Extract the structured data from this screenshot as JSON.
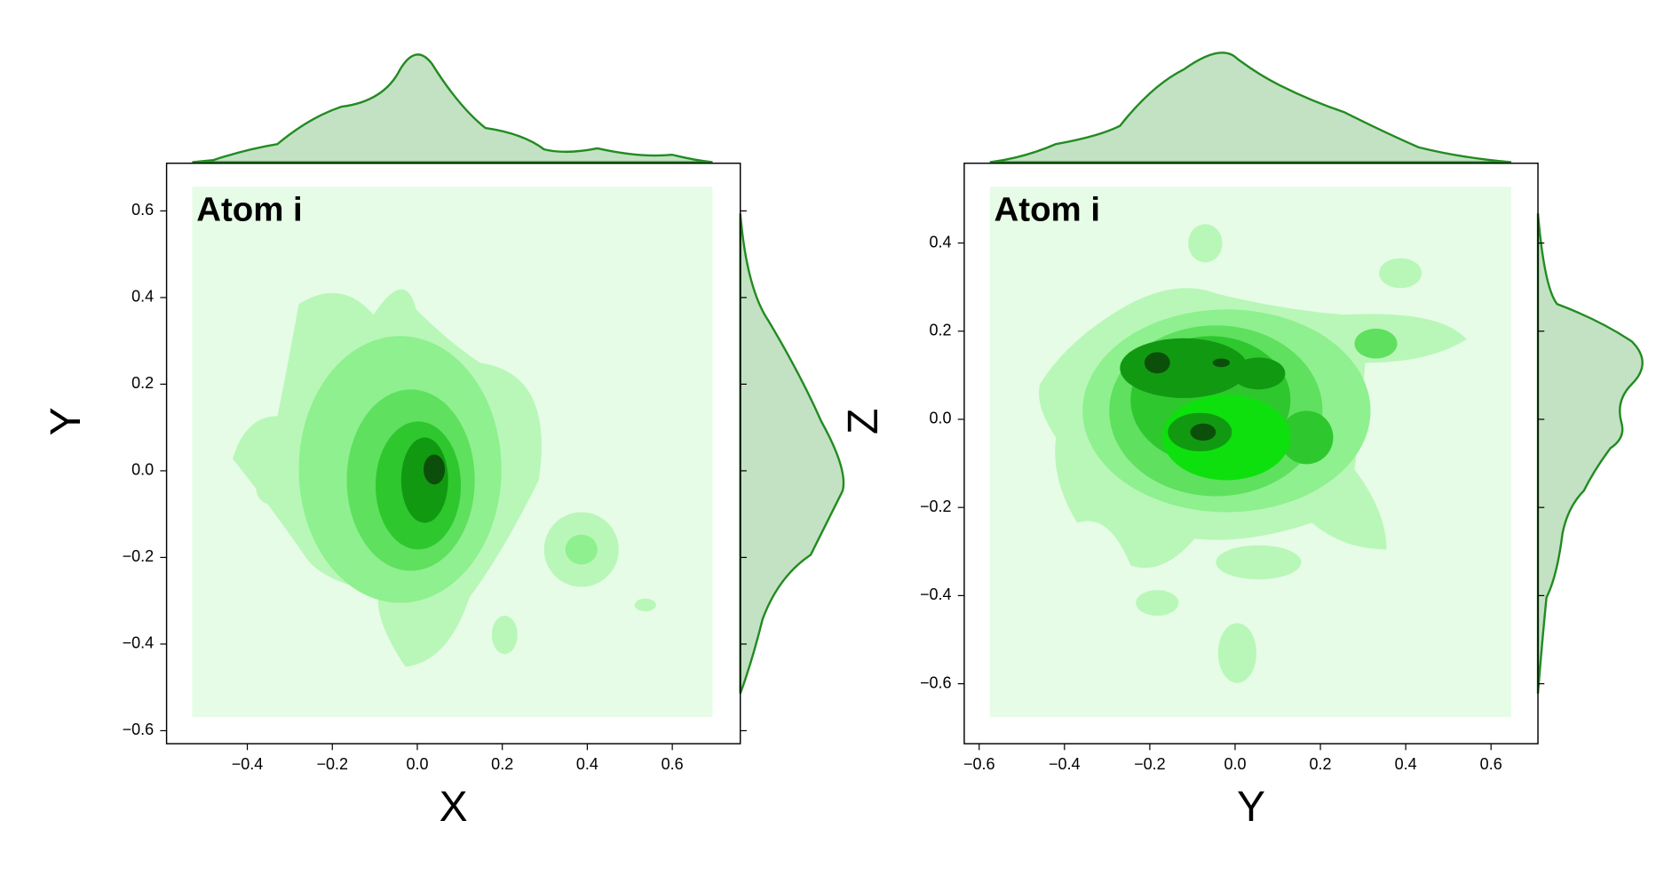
{
  "chart_data": [
    {
      "type": "kde2d",
      "annotation": "Atom i",
      "xlabel": "X",
      "ylabel": "Y",
      "color": "#228b22",
      "xlim": [
        -0.59,
        0.76
      ],
      "ylim": [
        -0.63,
        0.71
      ],
      "xticks": [
        {
          "value": -0.4,
          "label": "−0.4"
        },
        {
          "value": -0.2,
          "label": "−0.2"
        },
        {
          "value": 0,
          "label": "0.0"
        },
        0.2,
        0.4,
        0.6
      ],
      "yticks": [
        {
          "value": -0.6,
          "label": "−0.6"
        },
        {
          "value": -0.4,
          "label": "−0.4"
        },
        {
          "value": -0.2,
          "label": "−0.2"
        },
        {
          "value": 0,
          "label": "0.0"
        },
        0.2,
        0.4,
        0.6
      ]
    },
    {
      "type": "kde2d",
      "annotation": "Atom i",
      "xlabel": "Y",
      "ylabel": "Z",
      "color": "#228b22",
      "xlim": [
        -0.635,
        0.71
      ],
      "ylim": [
        -0.736,
        0.581
      ],
      "xticks": [
        {
          "value": -0.6,
          "label": "−0.6"
        },
        {
          "value": -0.4,
          "label": "−0.4"
        },
        {
          "value": -0.2,
          "label": "−0.2"
        },
        {
          "value": 0,
          "label": "0.0"
        },
        0.2,
        0.4,
        0.6
      ],
      "yticks": [
        {
          "value": -0.6,
          "label": "−0.6"
        },
        {
          "value": -0.4,
          "label": "−0.4"
        },
        {
          "value": -0.2,
          "label": "−0.2"
        },
        {
          "value": 0,
          "label": "0.0"
        },
        0.2,
        0.4
      ]
    }
  ]
}
